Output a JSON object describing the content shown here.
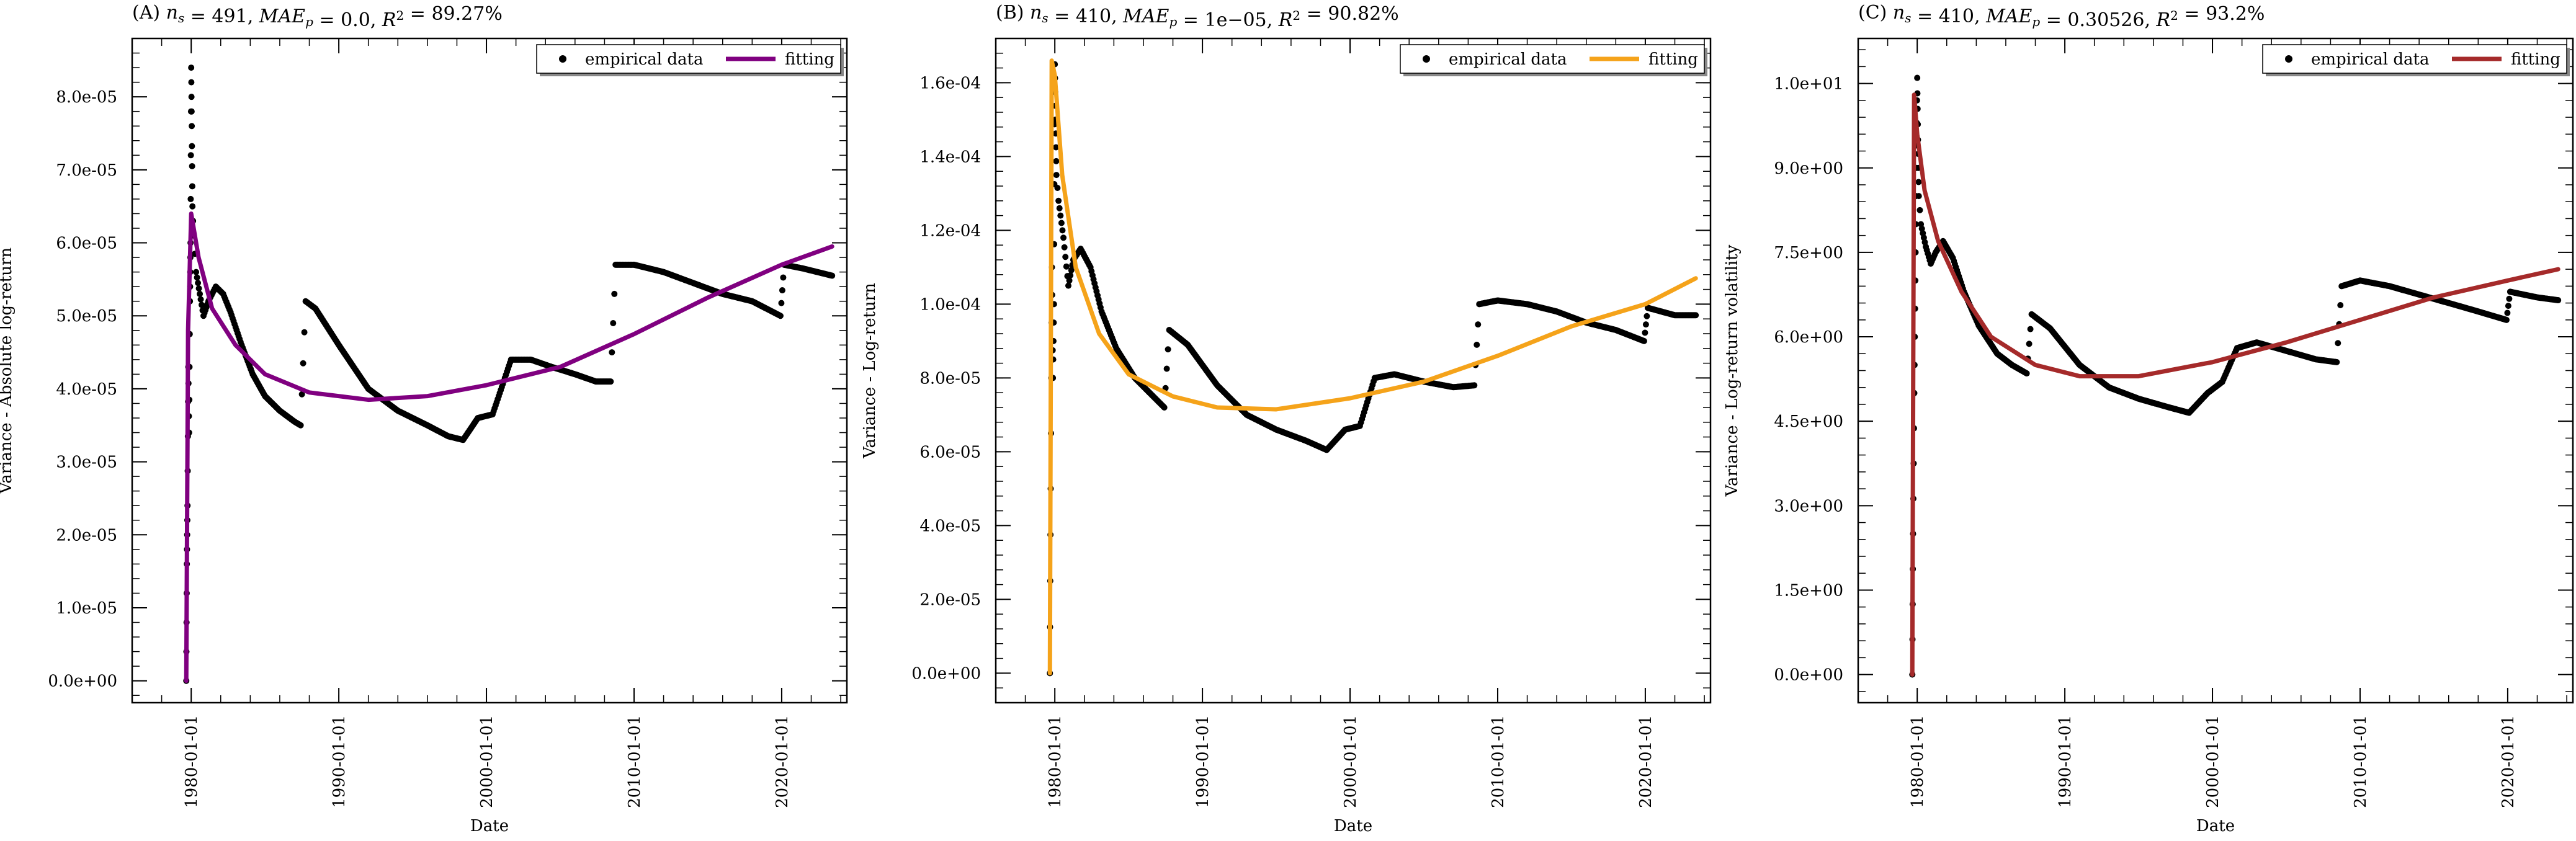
{
  "chart_data": [
    {
      "type": "scatter",
      "title": "(A) n_s = 491, MAE_p = 0.0, R^2 = 89.27%",
      "title_parts": {
        "letter": "(A)",
        "ns": "491",
        "mae": "0.0",
        "r2": "89.27%"
      },
      "xlabel": "Date",
      "ylabel": "Variance - Absolute log-return",
      "x_ticks": [
        "1980-01-01",
        "1990-01-01",
        "2000-01-01",
        "2010-01-01",
        "2020-01-01"
      ],
      "y_ticks": [
        "0.0e+00",
        "1.0e-05",
        "2.0e-05",
        "3.0e-05",
        "4.0e-05",
        "5.0e-05",
        "6.0e-05",
        "7.0e-05",
        "8.0e-05"
      ],
      "y_tick_values": [
        0,
        1e-05,
        2e-05,
        3e-05,
        4e-05,
        5e-05,
        6e-05,
        7e-05,
        8e-05
      ],
      "xlim": [
        "1976-01-01",
        "2024-06-01"
      ],
      "ylim": [
        -3e-06,
        8.8e-05
      ],
      "legend": [
        "empirical data",
        "fitting"
      ],
      "legend_position": "top-right",
      "fit_color": "#800080",
      "data_color": "#000000",
      "empirical": [
        [
          "1979-09-01",
          0.0
        ],
        [
          "1979-09-15",
          1.6e-05
        ],
        [
          "1979-10-01",
          2.4e-05
        ],
        [
          "1979-10-20",
          4.3e-05
        ],
        [
          "1979-11-10",
          3.4e-05
        ],
        [
          "1979-12-01",
          5.2e-05
        ],
        [
          "1979-12-15",
          6e-05
        ],
        [
          "1980-01-01",
          8.4e-05
        ],
        [
          "1980-01-15",
          7.6e-05
        ],
        [
          "1980-02-01",
          6.5e-05
        ],
        [
          "1980-03-01",
          6.1e-05
        ],
        [
          "1980-05-01",
          5.6e-05
        ],
        [
          "1980-08-01",
          5.3e-05
        ],
        [
          "1980-11-01",
          5e-05
        ],
        [
          "1981-03-01",
          5.2e-05
        ],
        [
          "1981-09-01",
          5.4e-05
        ],
        [
          "1982-03-01",
          5.3e-05
        ],
        [
          "1982-09-01",
          5.05e-05
        ],
        [
          "1983-06-01",
          4.6e-05
        ],
        [
          "1984-03-01",
          4.2e-05
        ],
        [
          "1985-01-01",
          3.9e-05
        ],
        [
          "1986-01-01",
          3.7e-05
        ],
        [
          "1987-01-01",
          3.55e-05
        ],
        [
          "1987-06-01",
          3.5e-05
        ],
        [
          "1987-10-01",
          5.2e-05
        ],
        [
          "1988-06-01",
          5.1e-05
        ],
        [
          "1990-01-01",
          4.6e-05
        ],
        [
          "1992-01-01",
          4e-05
        ],
        [
          "1994-01-01",
          3.7e-05
        ],
        [
          "1996-01-01",
          3.5e-05
        ],
        [
          "1997-06-01",
          3.35e-05
        ],
        [
          "1998-06-01",
          3.3e-05
        ],
        [
          "1999-06-01",
          3.6e-05
        ],
        [
          "2000-06-01",
          3.65e-05
        ],
        [
          "2001-09-01",
          4.4e-05
        ],
        [
          "2003-01-01",
          4.4e-05
        ],
        [
          "2004-06-01",
          4.3e-05
        ],
        [
          "2006-01-01",
          4.2e-05
        ],
        [
          "2007-06-01",
          4.1e-05
        ],
        [
          "2008-06-01",
          4.1e-05
        ],
        [
          "2008-10-01",
          5.7e-05
        ],
        [
          "2010-01-01",
          5.7e-05
        ],
        [
          "2012-01-01",
          5.6e-05
        ],
        [
          "2014-01-01",
          5.45e-05
        ],
        [
          "2016-01-01",
          5.3e-05
        ],
        [
          "2018-01-01",
          5.2e-05
        ],
        [
          "2019-12-01",
          5e-05
        ],
        [
          "2020-03-01",
          5.7e-05
        ],
        [
          "2021-06-01",
          5.65e-05
        ],
        [
          "2023-06-01",
          5.55e-05
        ]
      ],
      "fit": [
        [
          "1979-09-01",
          0.0
        ],
        [
          "1979-10-15",
          4.8e-05
        ],
        [
          "1980-01-01",
          6.4e-05
        ],
        [
          "1980-07-01",
          5.8e-05
        ],
        [
          "1981-06-01",
          5.1e-05
        ],
        [
          "1983-01-01",
          4.6e-05
        ],
        [
          "1985-01-01",
          4.2e-05
        ],
        [
          "1988-01-01",
          3.95e-05
        ],
        [
          "1992-01-01",
          3.85e-05
        ],
        [
          "1996-01-01",
          3.9e-05
        ],
        [
          "2000-01-01",
          4.05e-05
        ],
        [
          "2005-01-01",
          4.3e-05
        ],
        [
          "2010-01-01",
          4.75e-05
        ],
        [
          "2015-01-01",
          5.25e-05
        ],
        [
          "2020-01-01",
          5.7e-05
        ],
        [
          "2023-06-01",
          5.95e-05
        ]
      ]
    },
    {
      "type": "scatter",
      "title": "(B) n_s = 410, MAE_p = 1e-05, R^2 = 90.82%",
      "title_parts": {
        "letter": "(B)",
        "ns": "410",
        "mae": "1e−05",
        "r2": "90.82%"
      },
      "xlabel": "Date",
      "ylabel": "Variance - Log-return",
      "x_ticks": [
        "1980-01-01",
        "1990-01-01",
        "2000-01-01",
        "2010-01-01",
        "2020-01-01"
      ],
      "y_ticks": [
        "0.0e+00",
        "2.0e-05",
        "4.0e-05",
        "6.0e-05",
        "8.0e-05",
        "1.0e-04",
        "1.2e-04",
        "1.4e-04",
        "1.6e-04"
      ],
      "y_tick_values": [
        0,
        2e-05,
        4e-05,
        6e-05,
        8e-05,
        0.0001,
        0.00012,
        0.00014,
        0.00016
      ],
      "xlim": [
        "1976-01-01",
        "2024-06-01"
      ],
      "ylim": [
        -8e-06,
        0.000172
      ],
      "legend": [
        "empirical data",
        "fitting"
      ],
      "legend_position": "top-right",
      "fit_color": "#f5a31a",
      "data_color": "#000000",
      "empirical": [
        [
          "1979-09-01",
          0.0
        ],
        [
          "1979-09-20",
          5e-05
        ],
        [
          "1979-10-20",
          0.00011
        ],
        [
          "1979-11-15",
          8e-05
        ],
        [
          "1979-12-10",
          0.0001
        ],
        [
          "1980-01-01",
          0.000165
        ],
        [
          "1980-01-20",
          0.00015
        ],
        [
          "1980-02-10",
          0.000135
        ],
        [
          "1980-04-01",
          0.000128
        ],
        [
          "1980-08-01",
          0.000118
        ],
        [
          "1980-12-01",
          0.000105
        ],
        [
          "1981-04-01",
          0.000112
        ],
        [
          "1981-10-01",
          0.000115
        ],
        [
          "1982-06-01",
          0.00011
        ],
        [
          "1983-03-01",
          9.8e-05
        ],
        [
          "1984-03-01",
          8.8e-05
        ],
        [
          "1985-06-01",
          8e-05
        ],
        [
          "1986-06-01",
          7.6e-05
        ],
        [
          "1987-06-01",
          7.2e-05
        ],
        [
          "1987-10-01",
          9.3e-05
        ],
        [
          "1989-01-01",
          8.9e-05
        ],
        [
          "1991-01-01",
          7.8e-05
        ],
        [
          "1993-01-01",
          7e-05
        ],
        [
          "1995-01-01",
          6.6e-05
        ],
        [
          "1997-01-01",
          6.3e-05
        ],
        [
          "1998-06-01",
          6.05e-05
        ],
        [
          "1999-09-01",
          6.6e-05
        ],
        [
          "2000-09-01",
          6.7e-05
        ],
        [
          "2001-09-01",
          8e-05
        ],
        [
          "2003-01-01",
          8.1e-05
        ],
        [
          "2005-01-01",
          7.9e-05
        ],
        [
          "2007-01-01",
          7.75e-05
        ],
        [
          "2008-06-01",
          7.8e-05
        ],
        [
          "2008-10-01",
          0.0001
        ],
        [
          "2010-01-01",
          0.000101
        ],
        [
          "2012-01-01",
          0.0001
        ],
        [
          "2014-01-01",
          9.8e-05
        ],
        [
          "2016-01-01",
          9.5e-05
        ],
        [
          "2018-01-01",
          9.3e-05
        ],
        [
          "2019-12-01",
          9e-05
        ],
        [
          "2020-03-01",
          9.9e-05
        ],
        [
          "2022-01-01",
          9.7e-05
        ],
        [
          "2023-06-01",
          9.7e-05
        ]
      ],
      "fit": [
        [
          "1979-09-01",
          0.0
        ],
        [
          "1979-10-15",
          0.000166
        ],
        [
          "1980-01-01",
          0.000162
        ],
        [
          "1980-07-01",
          0.000135
        ],
        [
          "1981-06-01",
          0.00011
        ],
        [
          "1983-01-01",
          9.2e-05
        ],
        [
          "1985-01-01",
          8.1e-05
        ],
        [
          "1988-01-01",
          7.5e-05
        ],
        [
          "1991-01-01",
          7.2e-05
        ],
        [
          "1995-01-01",
          7.15e-05
        ],
        [
          "2000-01-01",
          7.45e-05
        ],
        [
          "2005-01-01",
          7.9e-05
        ],
        [
          "2010-01-01",
          8.6e-05
        ],
        [
          "2015-01-01",
          9.4e-05
        ],
        [
          "2020-01-01",
          0.0001
        ],
        [
          "2023-06-01",
          0.000107
        ]
      ]
    },
    {
      "type": "scatter",
      "title": "(C) n_s = 410, MAE_p = 0.30526, R^2 = 93.2%",
      "title_parts": {
        "letter": "(C)",
        "ns": "410",
        "mae": "0.30526",
        "r2": "93.2%"
      },
      "xlabel": "Date",
      "ylabel": "Variance - Log-return volatility",
      "x_ticks": [
        "1980-01-01",
        "1990-01-01",
        "2000-01-01",
        "2010-01-01",
        "2020-01-01"
      ],
      "y_ticks": [
        "0.0e+00",
        "1.5e+00",
        "3.0e+00",
        "4.5e+00",
        "6.0e+00",
        "7.5e+00",
        "9.0e+00",
        "1.0e+01"
      ],
      "y_tick_values": [
        0,
        1.5,
        3.0,
        4.5,
        6.0,
        7.5,
        9.0,
        10.5
      ],
      "xlim": [
        "1976-01-01",
        "2024-06-01"
      ],
      "ylim": [
        -0.5,
        11.3
      ],
      "legend": [
        "empirical data",
        "fitting"
      ],
      "legend_position": "top-right",
      "fit_color": "#a52a2a",
      "data_color": "#000000",
      "empirical": [
        [
          "1979-09-01",
          0.0
        ],
        [
          "1979-09-20",
          2.5
        ],
        [
          "1979-10-20",
          5.0
        ],
        [
          "1979-11-15",
          7.0
        ],
        [
          "1979-12-10",
          9.0
        ],
        [
          "1980-01-01",
          10.6
        ],
        [
          "1980-01-20",
          9.5
        ],
        [
          "1980-02-10",
          8.5
        ],
        [
          "1980-04-01",
          8.0
        ],
        [
          "1980-08-01",
          7.6
        ],
        [
          "1980-12-01",
          7.3
        ],
        [
          "1981-04-01",
          7.5
        ],
        [
          "1981-10-01",
          7.7
        ],
        [
          "1982-06-01",
          7.4
        ],
        [
          "1983-03-01",
          6.8
        ],
        [
          "1984-03-01",
          6.2
        ],
        [
          "1985-06-01",
          5.7
        ],
        [
          "1986-06-01",
          5.5
        ],
        [
          "1987-06-01",
          5.35
        ],
        [
          "1987-10-01",
          6.4
        ],
        [
          "1989-01-01",
          6.15
        ],
        [
          "1991-01-01",
          5.5
        ],
        [
          "1993-01-01",
          5.1
        ],
        [
          "1995-01-01",
          4.9
        ],
        [
          "1997-01-01",
          4.75
        ],
        [
          "1998-06-01",
          4.65
        ],
        [
          "1999-09-01",
          5.0
        ],
        [
          "2000-09-01",
          5.2
        ],
        [
          "2001-09-01",
          5.8
        ],
        [
          "2003-01-01",
          5.9
        ],
        [
          "2005-01-01",
          5.75
        ],
        [
          "2007-01-01",
          5.6
        ],
        [
          "2008-06-01",
          5.55
        ],
        [
          "2008-10-01",
          6.9
        ],
        [
          "2010-01-01",
          7.0
        ],
        [
          "2012-01-01",
          6.9
        ],
        [
          "2014-01-01",
          6.75
        ],
        [
          "2016-01-01",
          6.6
        ],
        [
          "2018-01-01",
          6.45
        ],
        [
          "2019-12-01",
          6.3
        ],
        [
          "2020-03-01",
          6.8
        ],
        [
          "2022-01-01",
          6.7
        ],
        [
          "2023-06-01",
          6.65
        ]
      ],
      "fit": [
        [
          "1979-09-01",
          0.0
        ],
        [
          "1979-10-15",
          10.3
        ],
        [
          "1980-01-01",
          9.6
        ],
        [
          "1980-07-01",
          8.6
        ],
        [
          "1981-06-01",
          7.7
        ],
        [
          "1983-01-01",
          6.8
        ],
        [
          "1985-01-01",
          6.0
        ],
        [
          "1988-01-01",
          5.5
        ],
        [
          "1991-01-01",
          5.3
        ],
        [
          "1995-01-01",
          5.3
        ],
        [
          "2000-01-01",
          5.55
        ],
        [
          "2005-01-01",
          5.9
        ],
        [
          "2010-01-01",
          6.3
        ],
        [
          "2015-01-01",
          6.7
        ],
        [
          "2020-01-01",
          7.0
        ],
        [
          "2023-06-01",
          7.2
        ]
      ]
    }
  ]
}
